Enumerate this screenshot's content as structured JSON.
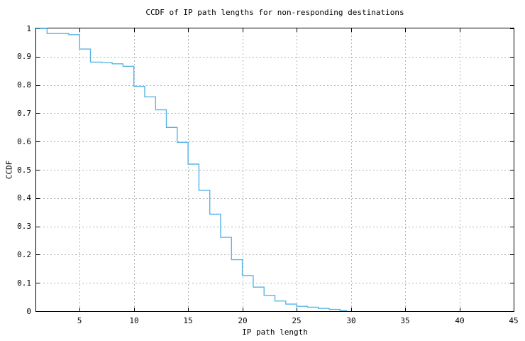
{
  "page": {
    "background": "#ffffff",
    "text_color": "#000000"
  },
  "chart_data": {
    "type": "line",
    "subtype": "steps",
    "title": "CCDF of IP path lengths for non-responding destinations",
    "xlabel": "IP path length",
    "ylabel": "CCDF",
    "xlim": [
      1,
      45
    ],
    "ylim": [
      0,
      1
    ],
    "grid": "dashed",
    "legend": "none",
    "line_color": "#57b5e6",
    "grid_color": "#b3b3b3",
    "axis_color": "#000000",
    "xticks": [
      {
        "v": 5,
        "label": "5"
      },
      {
        "v": 10,
        "label": "10"
      },
      {
        "v": 15,
        "label": "15"
      },
      {
        "v": 20,
        "label": "20"
      },
      {
        "v": 25,
        "label": "25"
      },
      {
        "v": 30,
        "label": "30"
      },
      {
        "v": 35,
        "label": "35"
      },
      {
        "v": 40,
        "label": "40"
      },
      {
        "v": 45,
        "label": "45"
      }
    ],
    "yticks": [
      {
        "v": 0,
        "label": "0"
      },
      {
        "v": 0.1,
        "label": "0.1"
      },
      {
        "v": 0.2,
        "label": "0.2"
      },
      {
        "v": 0.3,
        "label": "0.3"
      },
      {
        "v": 0.4,
        "label": "0.4"
      },
      {
        "v": 0.5,
        "label": "0.5"
      },
      {
        "v": 0.6,
        "label": "0.6"
      },
      {
        "v": 0.7,
        "label": "0.7"
      },
      {
        "v": 0.8,
        "label": "0.8"
      },
      {
        "v": 0.9,
        "label": "0.9"
      },
      {
        "v": 1,
        "label": "1"
      }
    ],
    "steps": [
      [
        1,
        1.0
      ],
      [
        2,
        0.982
      ],
      [
        4,
        0.978
      ],
      [
        5,
        0.927
      ],
      [
        6,
        0.881
      ],
      [
        7,
        0.879
      ],
      [
        8,
        0.875
      ],
      [
        9,
        0.866
      ],
      [
        10,
        0.795
      ],
      [
        11,
        0.758
      ],
      [
        12,
        0.712
      ],
      [
        13,
        0.65
      ],
      [
        14,
        0.597
      ],
      [
        15,
        0.52
      ],
      [
        16,
        0.427
      ],
      [
        17,
        0.343
      ],
      [
        18,
        0.261
      ],
      [
        19,
        0.182
      ],
      [
        20,
        0.126
      ],
      [
        21,
        0.085
      ],
      [
        22,
        0.056
      ],
      [
        23,
        0.036
      ],
      [
        24,
        0.025
      ],
      [
        25,
        0.017
      ],
      [
        26,
        0.014
      ],
      [
        27,
        0.0095
      ],
      [
        28,
        0.006
      ],
      [
        29,
        0.002
      ],
      [
        29.6,
        0.0
      ]
    ]
  }
}
